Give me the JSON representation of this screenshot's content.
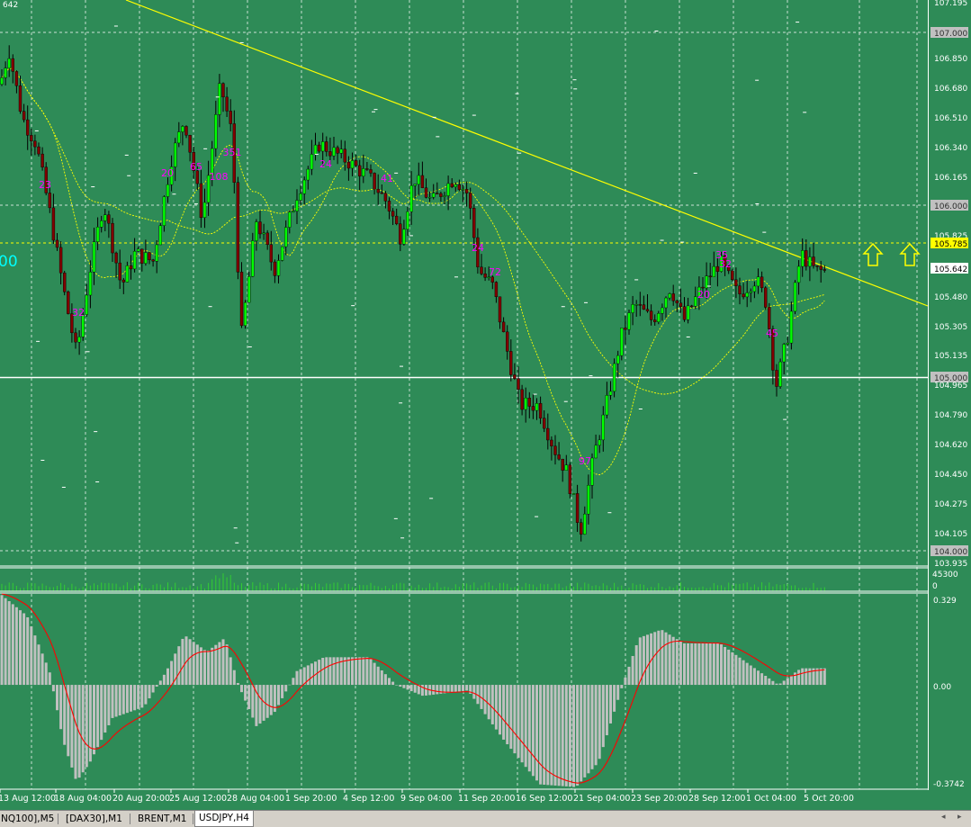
{
  "chart_window": {
    "symbol": "USDJPY",
    "timeframe": "H4",
    "top_cut_label": "642",
    "left_cut_label": "00"
  },
  "price_axis": {
    "labels": [
      "107.195",
      "107.000",
      "106.850",
      "106.680",
      "106.510",
      "106.340",
      "106.165",
      "106.000",
      "105.825",
      "105.785",
      "105.642",
      "105.480",
      "105.305",
      "105.135",
      "105.000",
      "104.965",
      "104.790",
      "104.620",
      "104.450",
      "104.275",
      "104.105",
      "104.000",
      "103.935"
    ],
    "highlight_current": "105.785",
    "current_price": "105.642",
    "hline_labels": [
      "107.000",
      "106.000",
      "105.000",
      "104.000"
    ]
  },
  "volume_axis": {
    "max": "45300",
    "min": "0"
  },
  "macd_axis": {
    "max": "0.329",
    "zero": "0.00",
    "min": "-0.3742"
  },
  "time_axis": {
    "labels": [
      "13 Aug 12:00",
      "18 Aug 04:00",
      "20 Aug 20:00",
      "25 Aug 12:00",
      "28 Aug 04:00",
      "1 Sep 20:00",
      "4 Sep 12:00",
      "9 Sep 04:00",
      "11 Sep 20:00",
      "16 Sep 12:00",
      "21 Sep 04:00",
      "23 Sep 20:00",
      "28 Sep 12:00",
      "1 Oct 04:00",
      "5 Oct 20:00"
    ]
  },
  "annotations": [
    "23",
    "32",
    "20",
    "65",
    "108",
    "351",
    "24",
    "41",
    "24",
    "72",
    "97",
    "20",
    "35",
    "32",
    "45"
  ],
  "arrows": [
    "up-arrow",
    "up-arrow"
  ],
  "tabs": [
    {
      "label": "NQ100],M5",
      "active": false
    },
    {
      "label": "[DAX30],M1",
      "active": false
    },
    {
      "label": "BRENT,M1",
      "active": false
    },
    {
      "label": "USDJPY,H4",
      "active": true
    }
  ],
  "colors": {
    "background": "#2e8b57",
    "grid": "#ffffff",
    "bull_candle": "#00ff00",
    "bear_candle": "#800000",
    "wick": "#000000",
    "ma": "#ffff00",
    "trendline": "#ffff00",
    "volume": "#32cd32",
    "macd_hist": "#c0c0c0",
    "macd_signal": "#ff0000",
    "annotation": "#ff00ff",
    "arrow": "#ffff00",
    "current_price_bg": "#ffff00"
  },
  "chart_data": {
    "type": "candlestick",
    "x": [
      "13 Aug 12:00",
      "18 Aug 04:00",
      "20 Aug 20:00",
      "25 Aug 12:00",
      "28 Aug 04:00",
      "1 Sep 20:00",
      "4 Sep 12:00",
      "9 Sep 04:00",
      "11 Sep 20:00",
      "16 Sep 12:00",
      "21 Sep 04:00",
      "23 Sep 20:00",
      "28 Sep 12:00",
      "1 Oct 04:00",
      "5 Oct 20:00"
    ],
    "close": [
      106.75,
      105.15,
      105.75,
      106.25,
      106.45,
      106.15,
      106.2,
      106.05,
      105.6,
      104.8,
      104.35,
      105.4,
      105.7,
      105.1,
      105.64
    ],
    "ylim": [
      103.9,
      107.25
    ],
    "hlines": [
      107.0,
      106.0,
      105.0,
      104.0
    ],
    "macd_ylim": [
      -0.3742,
      0.329
    ]
  }
}
